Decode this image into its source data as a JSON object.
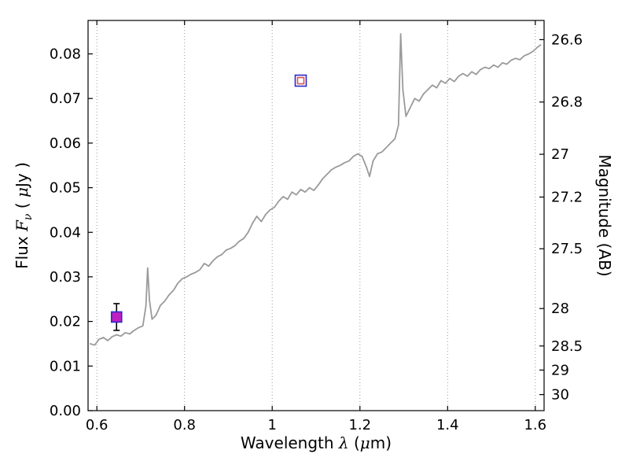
{
  "chart_data": {
    "type": "line",
    "title": "",
    "xlabel": {
      "parts": [
        {
          "t": "Wavelength "
        },
        {
          "t": "λ"
        },
        {
          "t": " ("
        },
        {
          "t": "μ"
        },
        {
          "t": "m)"
        }
      ]
    },
    "ylabel": {
      "parts": [
        {
          "t": "Flux "
        },
        {
          "t": "F"
        },
        {
          "t": "ν"
        },
        {
          "t": " ( "
        },
        {
          "t": "μ"
        },
        {
          "t": "Jy )"
        }
      ]
    },
    "ylabel_right": "Magnitude (AB)",
    "xlim": [
      0.58,
      1.62
    ],
    "ylim": [
      0,
      0.0875
    ],
    "xticks": {
      "values": [
        0.6,
        0.8,
        1.0,
        1.2,
        1.4,
        1.6
      ],
      "labels": [
        "0.6",
        "0.8",
        "1",
        "1.2",
        "1.4",
        "1.6"
      ]
    },
    "yticks": {
      "values": [
        0,
        0.01,
        0.02,
        0.03,
        0.04,
        0.05,
        0.06,
        0.07,
        0.08
      ],
      "labels": [
        "0.00",
        "0.01",
        "0.02",
        "0.03",
        "0.04",
        "0.05",
        "0.06",
        "0.07",
        "0.08"
      ]
    },
    "right_ticks": [
      {
        "label": "26.6",
        "flux": 0.0832
      },
      {
        "label": "26.8",
        "flux": 0.0692
      },
      {
        "label": "27",
        "flux": 0.0575
      },
      {
        "label": "27.2",
        "flux": 0.0479
      },
      {
        "label": "27.5",
        "flux": 0.0363
      },
      {
        "label": "28",
        "flux": 0.0229
      },
      {
        "label": "28.5",
        "flux": 0.0145
      },
      {
        "label": "29",
        "flux": 0.0091
      },
      {
        "label": "30",
        "flux": 0.0036
      }
    ],
    "grid": {
      "vertical": true,
      "horizontal": false,
      "style": "dotted",
      "color": "#999999"
    },
    "axis_color": "#000000",
    "background": "#ffffff",
    "spectrum": {
      "name": "model-spectrum",
      "color": "#9a9a9a",
      "x": [
        0.585,
        0.595,
        0.605,
        0.615,
        0.625,
        0.635,
        0.645,
        0.655,
        0.665,
        0.675,
        0.685,
        0.695,
        0.705,
        0.712,
        0.716,
        0.72,
        0.726,
        0.735,
        0.745,
        0.755,
        0.765,
        0.775,
        0.785,
        0.795,
        0.805,
        0.815,
        0.825,
        0.835,
        0.845,
        0.855,
        0.865,
        0.875,
        0.885,
        0.895,
        0.905,
        0.915,
        0.925,
        0.935,
        0.945,
        0.955,
        0.965,
        0.975,
        0.985,
        0.995,
        1.005,
        1.015,
        1.025,
        1.035,
        1.045,
        1.055,
        1.065,
        1.075,
        1.085,
        1.095,
        1.105,
        1.115,
        1.125,
        1.135,
        1.145,
        1.155,
        1.165,
        1.175,
        1.185,
        1.195,
        1.205,
        1.215,
        1.222,
        1.23,
        1.24,
        1.25,
        1.26,
        1.27,
        1.28,
        1.288,
        1.293,
        1.298,
        1.305,
        1.315,
        1.325,
        1.335,
        1.345,
        1.355,
        1.365,
        1.375,
        1.385,
        1.395,
        1.405,
        1.415,
        1.425,
        1.435,
        1.445,
        1.455,
        1.465,
        1.475,
        1.485,
        1.495,
        1.505,
        1.515,
        1.525,
        1.535,
        1.545,
        1.555,
        1.565,
        1.575,
        1.585,
        1.595,
        1.605,
        1.612
      ],
      "y": [
        0.015,
        0.0147,
        0.016,
        0.0164,
        0.0157,
        0.0166,
        0.017,
        0.0167,
        0.0175,
        0.0172,
        0.018,
        0.0186,
        0.019,
        0.0235,
        0.032,
        0.0248,
        0.0205,
        0.0214,
        0.0236,
        0.0246,
        0.026,
        0.027,
        0.0286,
        0.0296,
        0.03,
        0.0306,
        0.031,
        0.0316,
        0.033,
        0.0324,
        0.0336,
        0.0345,
        0.035,
        0.036,
        0.0364,
        0.037,
        0.038,
        0.0386,
        0.04,
        0.042,
        0.0436,
        0.0424,
        0.044,
        0.045,
        0.0456,
        0.047,
        0.048,
        0.0474,
        0.049,
        0.0484,
        0.0496,
        0.049,
        0.05,
        0.0494,
        0.0506,
        0.052,
        0.053,
        0.054,
        0.0546,
        0.055,
        0.0556,
        0.056,
        0.057,
        0.0576,
        0.057,
        0.0546,
        0.0525,
        0.056,
        0.0576,
        0.058,
        0.059,
        0.06,
        0.061,
        0.064,
        0.0845,
        0.072,
        0.066,
        0.068,
        0.07,
        0.0694,
        0.071,
        0.072,
        0.073,
        0.0724,
        0.074,
        0.0734,
        0.0745,
        0.0738,
        0.075,
        0.0756,
        0.075,
        0.076,
        0.0754,
        0.0765,
        0.077,
        0.0767,
        0.0775,
        0.077,
        0.078,
        0.0777,
        0.0786,
        0.079,
        0.0787,
        0.0796,
        0.08,
        0.0806,
        0.0815,
        0.082
      ]
    },
    "photometry": [
      {
        "name": "measured-point-filled",
        "x": 0.645,
        "y": 0.021,
        "yerr": 0.003,
        "marker": "square",
        "fill": "#c020c0",
        "edge": "#2929cc",
        "errorbar_color": "#000000",
        "size": 13
      },
      {
        "name": "measured-point-open",
        "x": 1.065,
        "y": 0.074,
        "yerr": 0,
        "marker": "square-open",
        "fill": "#ffffff",
        "edge": "#2929cc",
        "inner_edge": "#dd5555",
        "size": 14,
        "inner_size": 8
      }
    ]
  }
}
